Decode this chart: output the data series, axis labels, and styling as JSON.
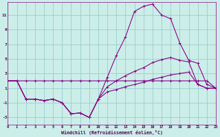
{
  "xlabel": "Windchill (Refroidissement éolien,°C)",
  "background_color": "#cceee8",
  "grid_color": "#99cccc",
  "line_color": "#880088",
  "xlim": [
    0,
    23
  ],
  "ylim": [
    -4.0,
    12.8
  ],
  "xticks": [
    0,
    1,
    2,
    3,
    4,
    5,
    6,
    7,
    8,
    9,
    10,
    11,
    12,
    13,
    14,
    15,
    16,
    17,
    18,
    19,
    20,
    21,
    22,
    23
  ],
  "yticks": [
    -3,
    -1,
    1,
    3,
    5,
    7,
    9,
    11
  ],
  "curve_flat_x": [
    0,
    1,
    2,
    3,
    4,
    5,
    6,
    7,
    8,
    9,
    10,
    11,
    12,
    13,
    14,
    15,
    16,
    17,
    18,
    19,
    20,
    21,
    22,
    23
  ],
  "curve_flat_y": [
    2.0,
    2.0,
    2.0,
    2.0,
    2.0,
    2.0,
    2.0,
    2.0,
    2.0,
    2.0,
    2.0,
    2.0,
    2.0,
    2.0,
    2.0,
    2.0,
    2.0,
    2.0,
    2.0,
    2.0,
    2.0,
    2.0,
    2.0,
    1.0
  ],
  "curve_main_x": [
    0,
    1,
    2,
    3,
    4,
    5,
    6,
    7,
    8,
    9,
    10,
    11,
    12,
    13,
    14,
    15,
    16,
    17,
    18,
    19,
    20,
    21,
    22,
    23
  ],
  "curve_main_y": [
    2.0,
    2.0,
    -0.5,
    -0.5,
    -0.7,
    -0.5,
    -1.0,
    -2.5,
    -2.4,
    -3.0,
    -0.5,
    2.5,
    5.5,
    8.0,
    11.5,
    12.2,
    12.5,
    11.0,
    10.5,
    7.2,
    4.8,
    4.4,
    1.5,
    1.0
  ],
  "curve_mid_x": [
    0,
    1,
    2,
    3,
    4,
    5,
    6,
    7,
    8,
    9,
    10,
    11,
    12,
    13,
    14,
    15,
    16,
    17,
    18,
    19,
    20,
    21,
    22,
    23
  ],
  "curve_mid_y": [
    2.0,
    2.0,
    -0.5,
    -0.5,
    -0.7,
    -0.5,
    -1.0,
    -2.5,
    -2.4,
    -3.0,
    -0.5,
    1.2,
    2.0,
    2.7,
    3.3,
    3.8,
    4.5,
    4.9,
    5.2,
    4.8,
    4.6,
    1.5,
    1.0,
    1.0
  ],
  "curve_low_x": [
    0,
    1,
    2,
    3,
    4,
    5,
    6,
    7,
    8,
    9,
    10,
    11,
    12,
    13,
    14,
    15,
    16,
    17,
    18,
    19,
    20,
    21,
    22,
    23
  ],
  "curve_low_y": [
    2.0,
    2.0,
    -0.5,
    -0.5,
    -0.7,
    -0.5,
    -1.0,
    -2.5,
    -2.4,
    -3.0,
    -0.5,
    0.5,
    0.8,
    1.2,
    1.5,
    1.8,
    2.2,
    2.5,
    2.8,
    3.0,
    3.2,
    1.5,
    1.0,
    1.0
  ]
}
